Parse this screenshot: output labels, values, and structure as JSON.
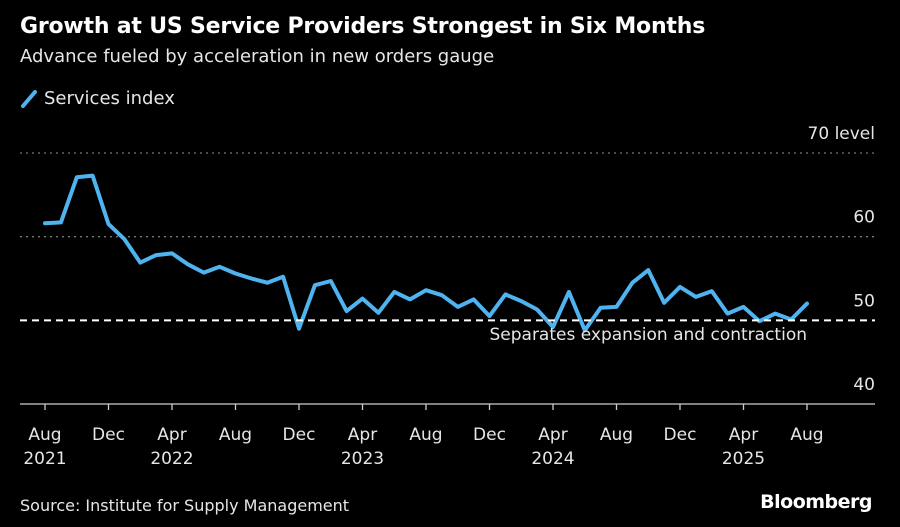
{
  "header": {
    "title": "Growth at US Service Providers Strongest in Six Months",
    "subtitle": "Advance fueled by acceleration in new orders gauge"
  },
  "footer": {
    "source": "Source: Institute for Supply Management",
    "brand": "Bloomberg"
  },
  "chart_data": {
    "type": "line",
    "title": "Growth at US Service Providers Strongest in Six Months",
    "subtitle": "Advance fueled by acceleration in new orders gauge",
    "legend": [
      {
        "label": "Services index",
        "color": "#4fb3f0"
      }
    ],
    "ylim": [
      40,
      70
    ],
    "yticks": [
      {
        "value": 70,
        "label": "70 level"
      },
      {
        "value": 60,
        "label": "60"
      },
      {
        "value": 50,
        "label": "50"
      },
      {
        "value": 40,
        "label": "40"
      }
    ],
    "xticks": [
      {
        "month": 0,
        "label": "Aug",
        "year": "2021"
      },
      {
        "month": 4,
        "label": "Dec",
        "year": ""
      },
      {
        "month": 8,
        "label": "Apr",
        "year": "2022"
      },
      {
        "month": 12,
        "label": "Aug",
        "year": ""
      },
      {
        "month": 16,
        "label": "Dec",
        "year": ""
      },
      {
        "month": 20,
        "label": "Apr",
        "year": "2023"
      },
      {
        "month": 24,
        "label": "Aug",
        "year": ""
      },
      {
        "month": 28,
        "label": "Dec",
        "year": ""
      },
      {
        "month": 32,
        "label": "Apr",
        "year": "2024"
      },
      {
        "month": 36,
        "label": "Aug",
        "year": ""
      },
      {
        "month": 40,
        "label": "Dec",
        "year": ""
      },
      {
        "month": 44,
        "label": "Apr",
        "year": "2025"
      },
      {
        "month": 48,
        "label": "Aug",
        "year": ""
      }
    ],
    "reference_line": {
      "value": 50,
      "label": "Separates expansion and contraction"
    },
    "series": [
      {
        "name": "Services index",
        "start": "Aug 2021",
        "frequency": "monthly",
        "values": [
          61.6,
          61.7,
          67.1,
          67.3,
          61.5,
          59.7,
          56.9,
          57.8,
          58.0,
          56.7,
          55.7,
          56.4,
          55.6,
          55.0,
          54.5,
          55.2,
          49.0,
          54.2,
          54.7,
          51.1,
          52.6,
          50.9,
          53.4,
          52.5,
          53.6,
          53.0,
          51.6,
          52.5,
          50.5,
          53.1,
          52.3,
          51.3,
          49.2,
          53.4,
          48.8,
          51.5,
          51.6,
          54.5,
          56.0,
          52.1,
          54.0,
          52.8,
          53.5,
          50.8,
          51.6,
          49.9,
          50.8,
          50.1,
          52.0
        ]
      }
    ]
  }
}
